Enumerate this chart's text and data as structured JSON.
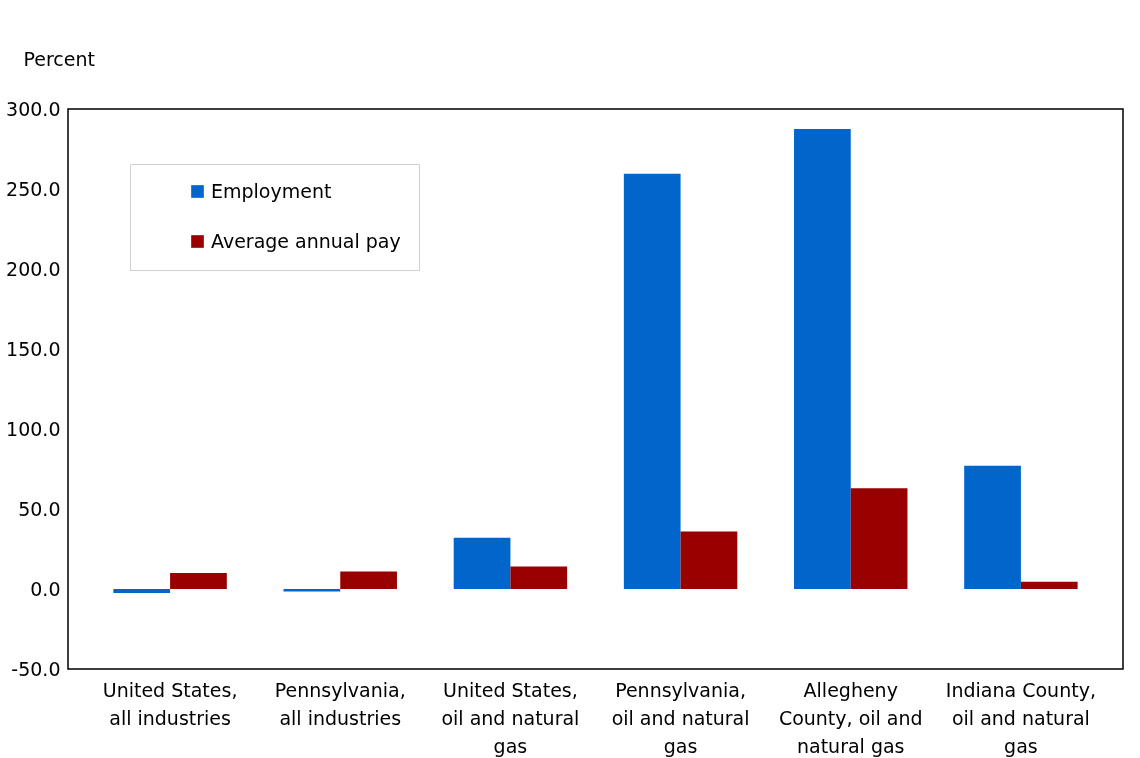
{
  "chart_data": {
    "type": "bar",
    "ylabel": "Percent",
    "categories": [
      "United States, all industries",
      "Pennsylvania, all industries",
      "United States, oil and natural gas",
      "Pennsylvania, oil and natural gas",
      "Allegheny County, oil and natural gas",
      "Indiana County, oil and natural gas"
    ],
    "series": [
      {
        "name": "Employment",
        "color": "#0066cc",
        "values": [
          -2.5,
          -1.5,
          32,
          259.5,
          287.5,
          77
        ]
      },
      {
        "name": "Average annual pay",
        "color": "#990000",
        "values": [
          10,
          11,
          14,
          36,
          63,
          4.5
        ]
      }
    ],
    "ylim": [
      -50,
      300
    ],
    "yticks": [
      {
        "value": -50,
        "label": "-50.0"
      },
      {
        "value": 0,
        "label": "0.0"
      },
      {
        "value": 50,
        "label": "50.0"
      },
      {
        "value": 100,
        "label": "100.0"
      },
      {
        "value": 150,
        "label": "150.0"
      },
      {
        "value": 200,
        "label": "200.0"
      },
      {
        "value": 250,
        "label": "250.0"
      },
      {
        "value": 300,
        "label": "300.0"
      }
    ],
    "legend": "top left",
    "grid": false
  }
}
